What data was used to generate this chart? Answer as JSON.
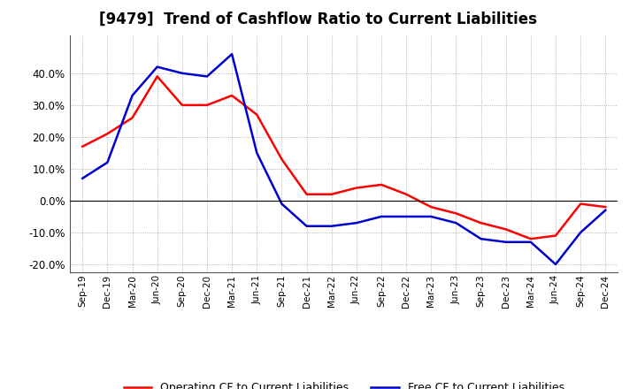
{
  "title": "[9479]  Trend of Cashflow Ratio to Current Liabilities",
  "x_labels": [
    "Sep-19",
    "Dec-19",
    "Mar-20",
    "Jun-20",
    "Sep-20",
    "Dec-20",
    "Mar-21",
    "Jun-21",
    "Sep-21",
    "Dec-21",
    "Mar-22",
    "Jun-22",
    "Sep-22",
    "Dec-22",
    "Mar-23",
    "Jun-23",
    "Sep-23",
    "Dec-23",
    "Mar-24",
    "Jun-24",
    "Sep-24",
    "Dec-24"
  ],
  "operating_cf": [
    0.17,
    0.21,
    0.26,
    0.39,
    0.3,
    0.3,
    0.33,
    0.27,
    0.13,
    0.02,
    0.02,
    0.04,
    0.05,
    0.02,
    -0.02,
    -0.04,
    -0.07,
    -0.09,
    -0.12,
    -0.11,
    -0.01,
    -0.02
  ],
  "free_cf": [
    0.07,
    0.12,
    0.33,
    0.42,
    0.4,
    0.39,
    0.46,
    0.15,
    -0.01,
    -0.08,
    -0.08,
    -0.07,
    -0.05,
    -0.05,
    -0.05,
    -0.07,
    -0.12,
    -0.13,
    -0.13,
    -0.2,
    -0.1,
    -0.03
  ],
  "operating_color": "#ff0000",
  "free_color": "#0000cc",
  "ylim": [
    -0.225,
    0.52
  ],
  "yticks": [
    -0.2,
    -0.1,
    0.0,
    0.1,
    0.2,
    0.3,
    0.4
  ],
  "bg_color": "#ffffff",
  "grid_color": "#888888",
  "title_fontsize": 12,
  "legend_labels": [
    "Operating CF to Current Liabilities",
    "Free CF to Current Liabilities"
  ]
}
